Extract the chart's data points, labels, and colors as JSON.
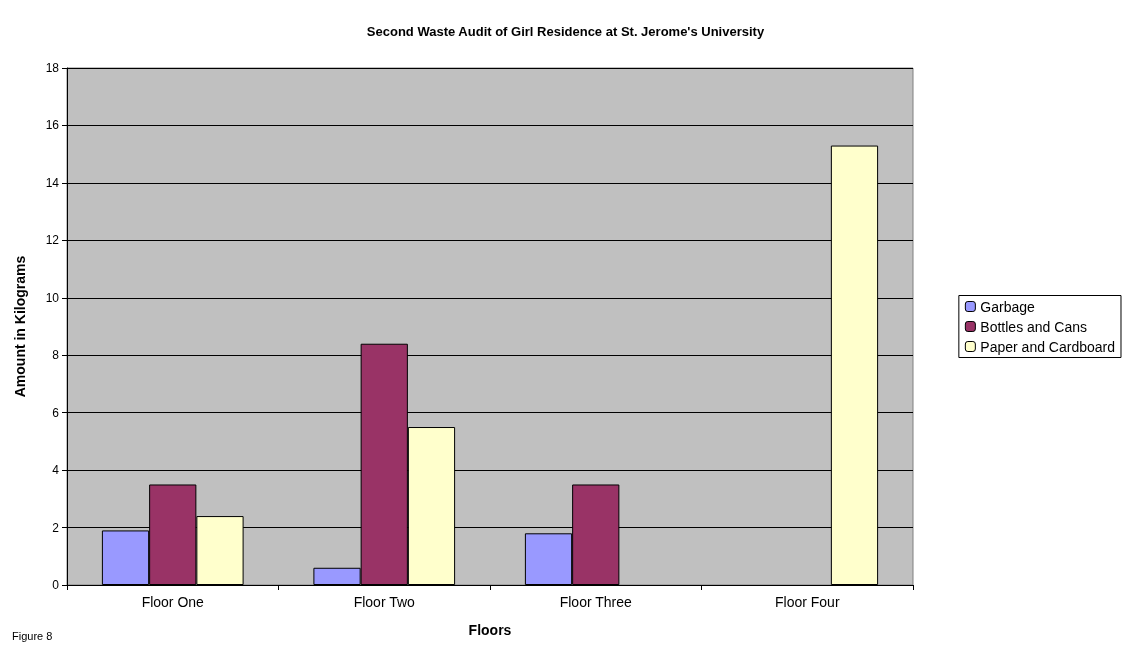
{
  "chart_data": {
    "type": "bar",
    "title": "Second Waste Audit of Girl Residence at St. Jerome's University",
    "xlabel": "Floors",
    "ylabel": "Amount in Kilograms",
    "annotations": [
      "Figure 8"
    ],
    "categories": [
      "Floor One",
      "Floor Two",
      "Floor Three",
      "Floor Four"
    ],
    "series": [
      {
        "name": "Garbage",
        "color": "#9999ff",
        "values": [
          1.9,
          0.6,
          1.8,
          null
        ]
      },
      {
        "name": "Bottles and Cans",
        "color": "#993366",
        "values": [
          3.5,
          8.4,
          3.5,
          null
        ]
      },
      {
        "name": "Paper and Cardboard",
        "color": "#ffffcc",
        "values": [
          2.4,
          5.5,
          null,
          15.3
        ]
      }
    ],
    "ylim": [
      0,
      18
    ],
    "yticks": [
      0,
      2,
      4,
      6,
      8,
      10,
      12,
      14,
      16,
      18
    ],
    "grid": "y",
    "legend": "right"
  }
}
